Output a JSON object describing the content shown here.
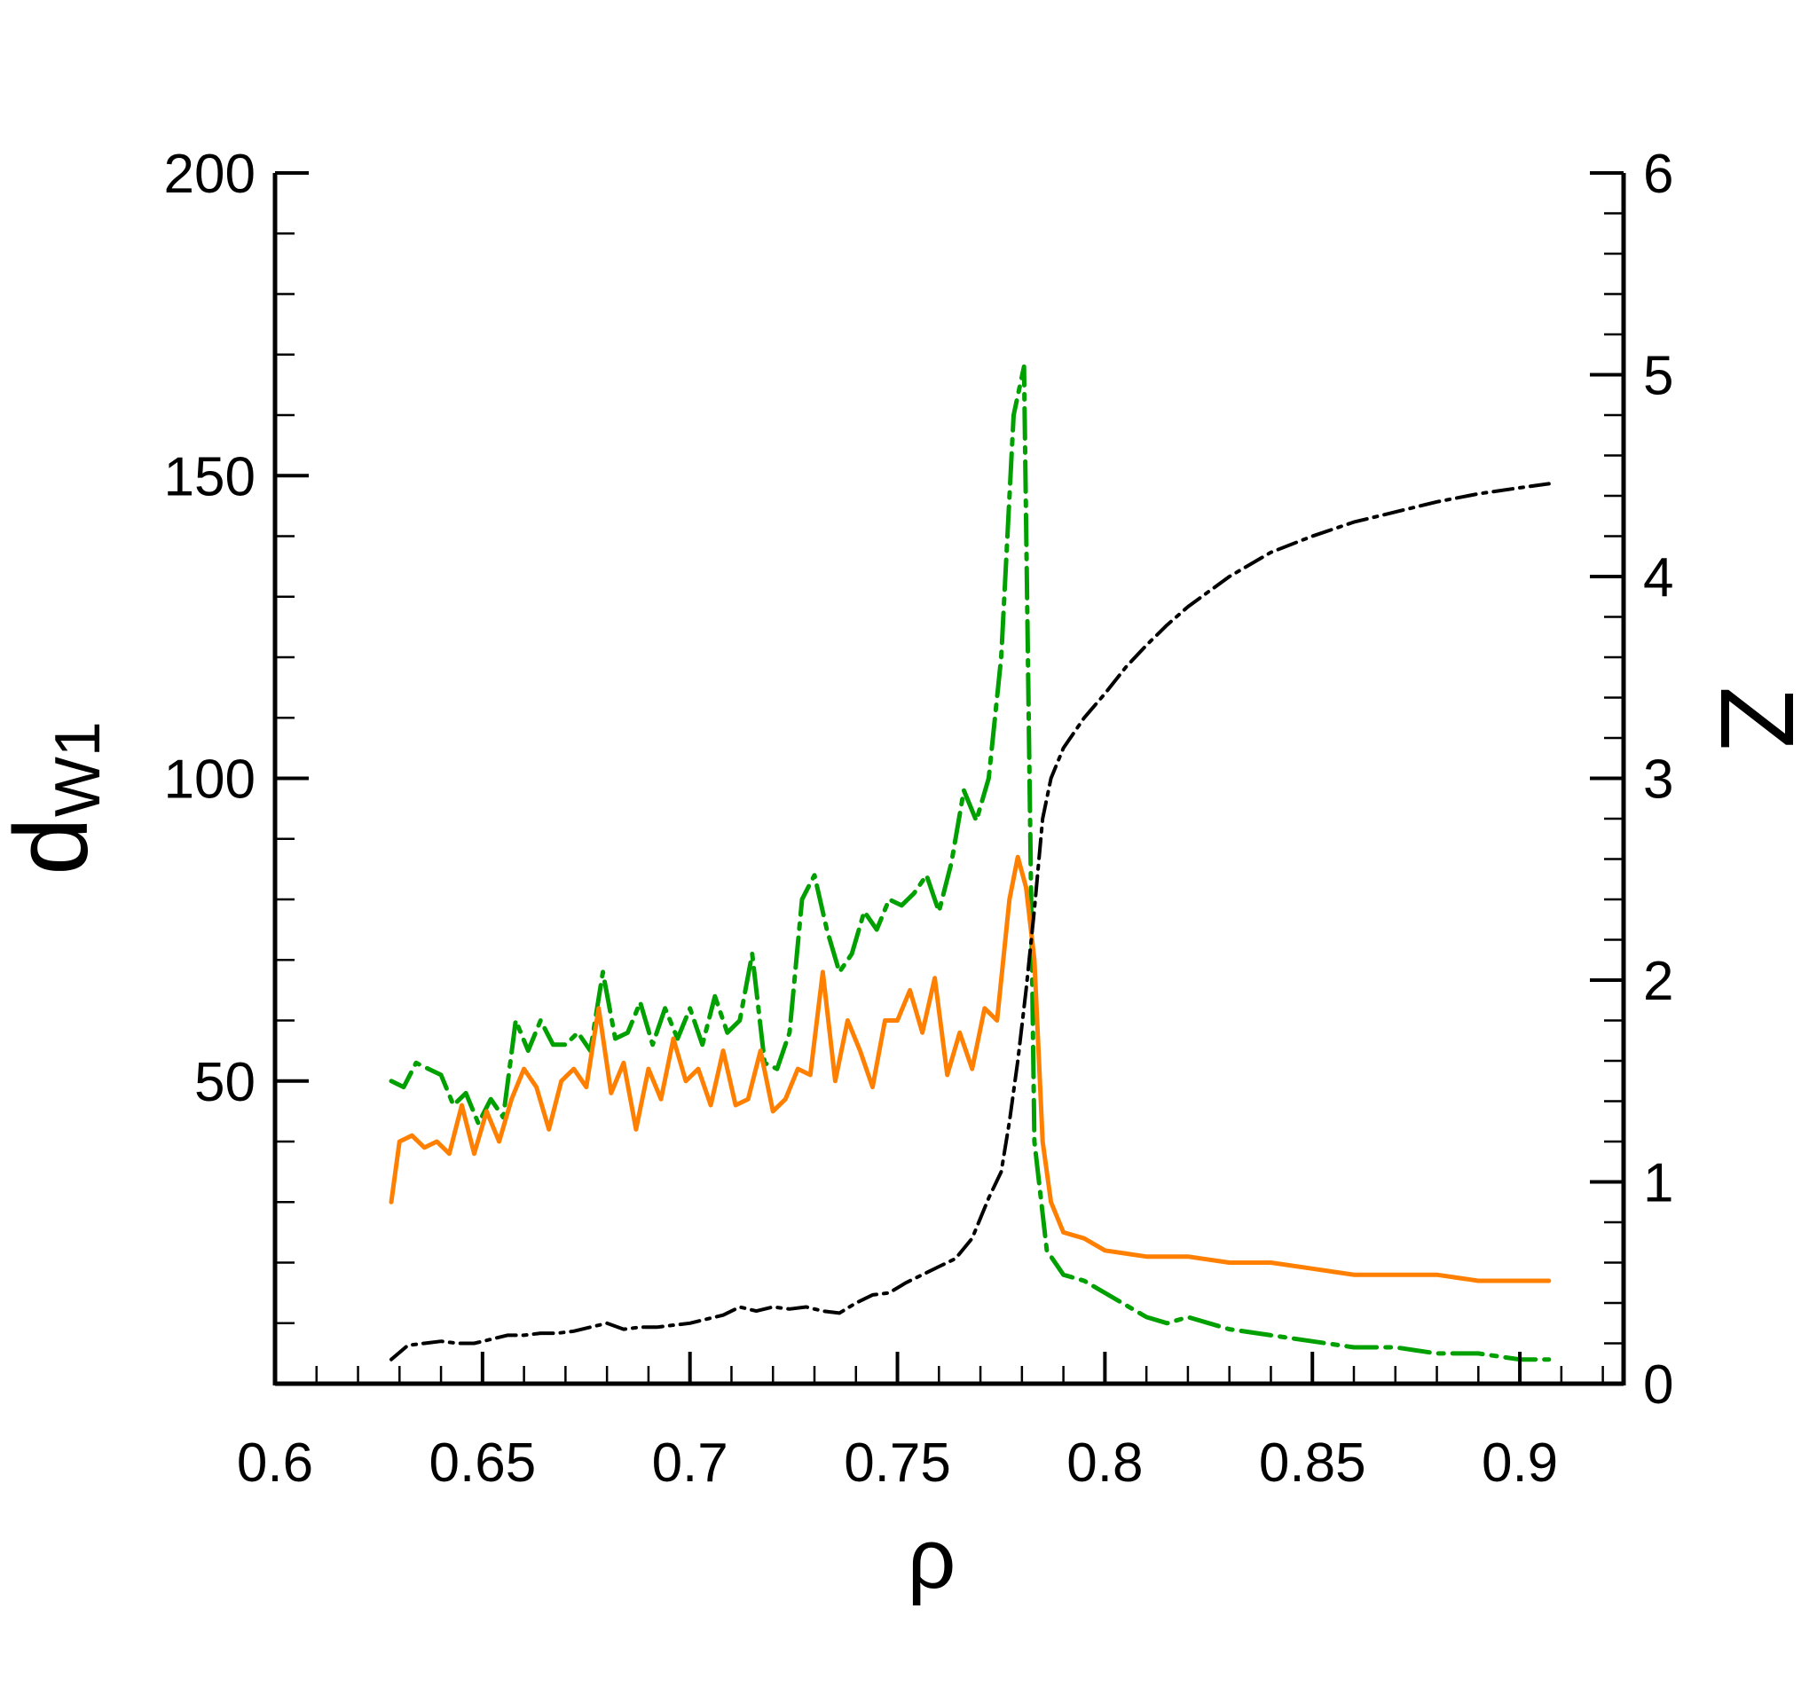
{
  "chart_data": {
    "type": "line",
    "xlabel": "ρ",
    "ylabel": {
      "main": "d",
      "sub": "W1"
    },
    "y2label": "Z",
    "xlim": [
      0.6,
      0.925
    ],
    "ylim": [
      0,
      200
    ],
    "y2lim": [
      0,
      6
    ],
    "x_ticks": [
      0.6,
      0.65,
      0.7,
      0.75,
      0.8,
      0.85,
      0.9
    ],
    "x_tick_labels": [
      "0.6",
      "0.65",
      "0.7",
      "0.75",
      "0.8",
      "0.85",
      "0.9"
    ],
    "y_ticks": [
      50,
      100,
      150,
      200
    ],
    "y_tick_labels": [
      "50",
      "100",
      "150",
      "200"
    ],
    "y2_ticks": [
      0,
      1,
      2,
      3,
      4,
      5,
      6
    ],
    "y2_tick_labels": [
      "0",
      "1",
      "2",
      "3",
      "4",
      "5",
      "6"
    ],
    "grid": false,
    "legend": "none",
    "series": [
      {
        "axis": "left",
        "color": "#00a000",
        "dash": "dashdot",
        "x": [
          0.628,
          0.631,
          0.634,
          0.637,
          0.64,
          0.643,
          0.646,
          0.649,
          0.652,
          0.655,
          0.658,
          0.661,
          0.664,
          0.667,
          0.67,
          0.673,
          0.676,
          0.679,
          0.682,
          0.685,
          0.688,
          0.691,
          0.694,
          0.697,
          0.7,
          0.703,
          0.706,
          0.709,
          0.712,
          0.715,
          0.718,
          0.721,
          0.724,
          0.727,
          0.73,
          0.733,
          0.736,
          0.739,
          0.742,
          0.745,
          0.748,
          0.751,
          0.754,
          0.757,
          0.76,
          0.763,
          0.766,
          0.769,
          0.772,
          0.775,
          0.778,
          0.7805,
          0.783,
          0.786,
          0.79,
          0.795,
          0.8,
          0.805,
          0.81,
          0.815,
          0.82,
          0.83,
          0.84,
          0.85,
          0.86,
          0.87,
          0.88,
          0.89,
          0.9,
          0.907
        ],
        "y": [
          50,
          49,
          53,
          52,
          51,
          46,
          48,
          43,
          47,
          44,
          60,
          55,
          60,
          56,
          56,
          58,
          55,
          68,
          57,
          58,
          63,
          56,
          62,
          57,
          62,
          56,
          64,
          58,
          60,
          71,
          53,
          52,
          58,
          80,
          84,
          75,
          68,
          71,
          78,
          75,
          80,
          79,
          81,
          84,
          78,
          86,
          98,
          93,
          100,
          120,
          160,
          168,
          40,
          22,
          18,
          17,
          15,
          13,
          11,
          10,
          11,
          9,
          8,
          7,
          6,
          6,
          5,
          5,
          4,
          4
        ]
      },
      {
        "axis": "left",
        "color": "#ff7f00",
        "dash": "solid",
        "x": [
          0.628,
          0.63,
          0.633,
          0.636,
          0.639,
          0.642,
          0.645,
          0.648,
          0.651,
          0.654,
          0.657,
          0.66,
          0.663,
          0.666,
          0.669,
          0.672,
          0.675,
          0.678,
          0.681,
          0.684,
          0.687,
          0.69,
          0.693,
          0.696,
          0.699,
          0.702,
          0.705,
          0.708,
          0.711,
          0.714,
          0.717,
          0.72,
          0.723,
          0.726,
          0.729,
          0.732,
          0.735,
          0.738,
          0.741,
          0.744,
          0.747,
          0.75,
          0.753,
          0.756,
          0.759,
          0.762,
          0.765,
          0.768,
          0.771,
          0.774,
          0.777,
          0.779,
          0.781,
          0.783,
          0.785,
          0.787,
          0.79,
          0.795,
          0.8,
          0.81,
          0.82,
          0.83,
          0.84,
          0.85,
          0.86,
          0.87,
          0.88,
          0.89,
          0.9,
          0.907
        ],
        "y": [
          30,
          40,
          41,
          39,
          40,
          38,
          46,
          38,
          45,
          40,
          47,
          52,
          49,
          42,
          50,
          52,
          49,
          62,
          48,
          53,
          42,
          52,
          47,
          57,
          50,
          52,
          46,
          55,
          46,
          47,
          55,
          45,
          47,
          52,
          51,
          68,
          50,
          60,
          55,
          49,
          60,
          60,
          65,
          58,
          67,
          51,
          58,
          52,
          62,
          60,
          80,
          87,
          82,
          70,
          40,
          30,
          25,
          24,
          22,
          21,
          21,
          20,
          20,
          19,
          18,
          18,
          18,
          17,
          17,
          17
        ]
      },
      {
        "axis": "right",
        "color": "#000000",
        "dash": "dashdot",
        "x": [
          0.628,
          0.632,
          0.636,
          0.64,
          0.644,
          0.648,
          0.652,
          0.656,
          0.66,
          0.664,
          0.668,
          0.672,
          0.676,
          0.68,
          0.684,
          0.688,
          0.692,
          0.696,
          0.7,
          0.704,
          0.708,
          0.712,
          0.716,
          0.72,
          0.724,
          0.728,
          0.732,
          0.736,
          0.74,
          0.744,
          0.748,
          0.752,
          0.756,
          0.76,
          0.764,
          0.768,
          0.772,
          0.775,
          0.777,
          0.779,
          0.781,
          0.783,
          0.785,
          0.787,
          0.79,
          0.795,
          0.8,
          0.805,
          0.81,
          0.815,
          0.82,
          0.83,
          0.84,
          0.85,
          0.86,
          0.87,
          0.88,
          0.89,
          0.9,
          0.907
        ],
        "y": [
          0.12,
          0.19,
          0.2,
          0.21,
          0.2,
          0.2,
          0.22,
          0.24,
          0.24,
          0.25,
          0.25,
          0.26,
          0.28,
          0.3,
          0.27,
          0.28,
          0.28,
          0.29,
          0.3,
          0.32,
          0.34,
          0.38,
          0.36,
          0.38,
          0.37,
          0.38,
          0.36,
          0.35,
          0.4,
          0.44,
          0.45,
          0.5,
          0.54,
          0.58,
          0.62,
          0.72,
          0.92,
          1.05,
          1.3,
          1.6,
          1.95,
          2.35,
          2.8,
          3.0,
          3.15,
          3.3,
          3.42,
          3.55,
          3.66,
          3.76,
          3.85,
          4.0,
          4.12,
          4.2,
          4.27,
          4.32,
          4.37,
          4.41,
          4.44,
          4.46
        ]
      }
    ]
  }
}
